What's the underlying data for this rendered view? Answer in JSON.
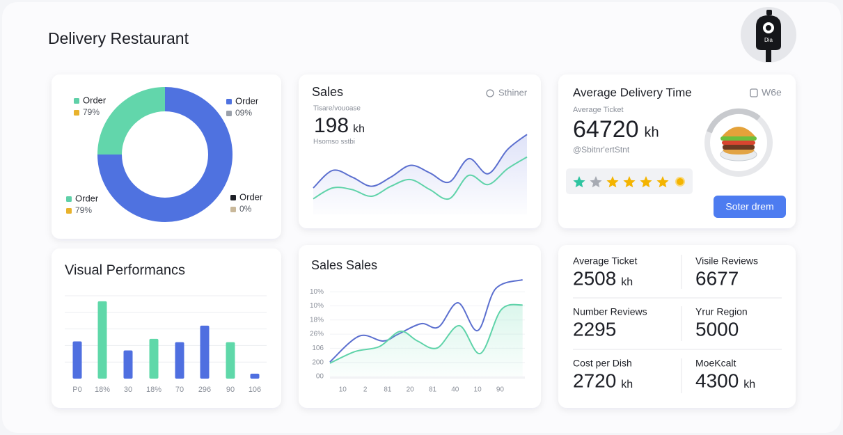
{
  "header": {
    "title": "Delivery Restaurant",
    "avatar_label": "Dia"
  },
  "donut_card": {
    "type": "pie",
    "series": [
      {
        "name": "Order",
        "color": "#4f72e0",
        "value": 75
      },
      {
        "name": "Order",
        "color": "#62d6ab",
        "value": 25
      }
    ],
    "legend": [
      {
        "name": "Order",
        "label": "79%",
        "colors": [
          "#5fd0a8",
          "#e8b22c"
        ]
      },
      {
        "name": "Order",
        "label": "09%",
        "colors": [
          "#4f72e0",
          "#9aa0aa"
        ]
      },
      {
        "name": "Order",
        "label": "79%",
        "colors": [
          "#5fd0a8",
          "#e8b22c"
        ]
      },
      {
        "name": "Order",
        "label": "0%",
        "colors": [
          "#1d1f26",
          "#c9b89a"
        ]
      }
    ]
  },
  "sales_card": {
    "type": "line",
    "title": "Sales",
    "action": "Sthiner",
    "kicker": "Tisare/vouoase",
    "value": 198,
    "unit": "kh",
    "caption": "Hsomso sstbi",
    "ylim": [
      0,
      100
    ],
    "series": [
      {
        "color": "#5b6fcf",
        "values": [
          25,
          46,
          38,
          27,
          38,
          52,
          43,
          32,
          60,
          42,
          71,
          89
        ]
      },
      {
        "color": "#5fd3a9",
        "values": [
          12,
          25,
          23,
          15,
          27,
          35,
          23,
          12,
          40,
          29,
          48,
          62
        ]
      }
    ]
  },
  "delivery_card": {
    "title": "Average Delivery Time",
    "action": "W6e",
    "kicker": "Average Ticket",
    "value": 64720,
    "unit": "kh",
    "caption": "@Sbitnr'ertStnt",
    "button": "Soter drem"
  },
  "performance_card": {
    "type": "bar",
    "title": "Visual Performancs",
    "categories": [
      "P0",
      "18%",
      "30",
      "18%",
      "70",
      "296",
      "90",
      "106"
    ],
    "values": [
      2.25,
      4.67,
      1.7,
      2.4,
      2.2,
      3.2,
      2.2,
      0.3
    ],
    "colors": [
      "#4f6fe0",
      "#5fd8a9",
      "#4f6fe0",
      "#5fd8a9",
      "#4f6fe0",
      "#4f6fe0",
      "#5fd8a9",
      "#4f6fe0"
    ],
    "ylim": [
      0,
      5
    ],
    "grid_values": [
      1,
      2,
      3,
      4,
      5
    ]
  },
  "sales_sales_card": {
    "type": "line",
    "title": "Sales Sales",
    "xlim": [
      0,
      9
    ],
    "ylim": [
      0,
      7
    ],
    "xticks": [
      {
        "value": 1,
        "label": "10"
      },
      {
        "value": 2,
        "label": "2"
      },
      {
        "value": 3,
        "label": "81"
      },
      {
        "value": 4,
        "label": "20"
      },
      {
        "value": 5,
        "label": "81"
      },
      {
        "value": 6,
        "label": "40"
      },
      {
        "value": 7,
        "label": "10"
      },
      {
        "value": 8,
        "label": "90"
      }
    ],
    "yticks": [
      {
        "value": 0,
        "label": "00"
      },
      {
        "value": 1,
        "label": "200"
      },
      {
        "value": 2,
        "label": "106"
      },
      {
        "value": 3,
        "label": "26%"
      },
      {
        "value": 4,
        "label": "18%"
      },
      {
        "value": 5,
        "label": "10%"
      },
      {
        "value": 6,
        "label": "10%"
      }
    ],
    "grid": true,
    "series": [
      {
        "color": "#5b6fcf",
        "x": [
          0.43,
          1.73,
          2.79,
          3.47,
          4.49,
          5.26,
          6.13,
          7.0,
          7.8,
          9.0
        ],
        "values": [
          1.03,
          2.86,
          2.51,
          3.0,
          3.74,
          3.5,
          5.22,
          3.25,
          6.21,
          6.85
        ]
      },
      {
        "color": "#5fd3a9",
        "x": [
          0.43,
          1.55,
          2.63,
          3.56,
          4.33,
          5.2,
          6.19,
          7.12,
          8.05,
          9.0
        ],
        "values": [
          0.94,
          1.77,
          2.12,
          3.2,
          2.51,
          2.02,
          3.6,
          1.63,
          4.73,
          5.07
        ]
      }
    ]
  },
  "stats_card": {
    "items": [
      {
        "label": "Average Ticket",
        "value": 2508,
        "unit": "kh"
      },
      {
        "label": "Visile Reviews",
        "value": 6677
      },
      {
        "label": "Number Reviews",
        "value": 2295
      },
      {
        "label": "Yrur Region",
        "value": 5000
      },
      {
        "label": "Cost per Dish",
        "value": 2720,
        "unit": "kh"
      },
      {
        "label": "MoeKcalt",
        "value": 4300,
        "unit": "kh"
      }
    ]
  }
}
